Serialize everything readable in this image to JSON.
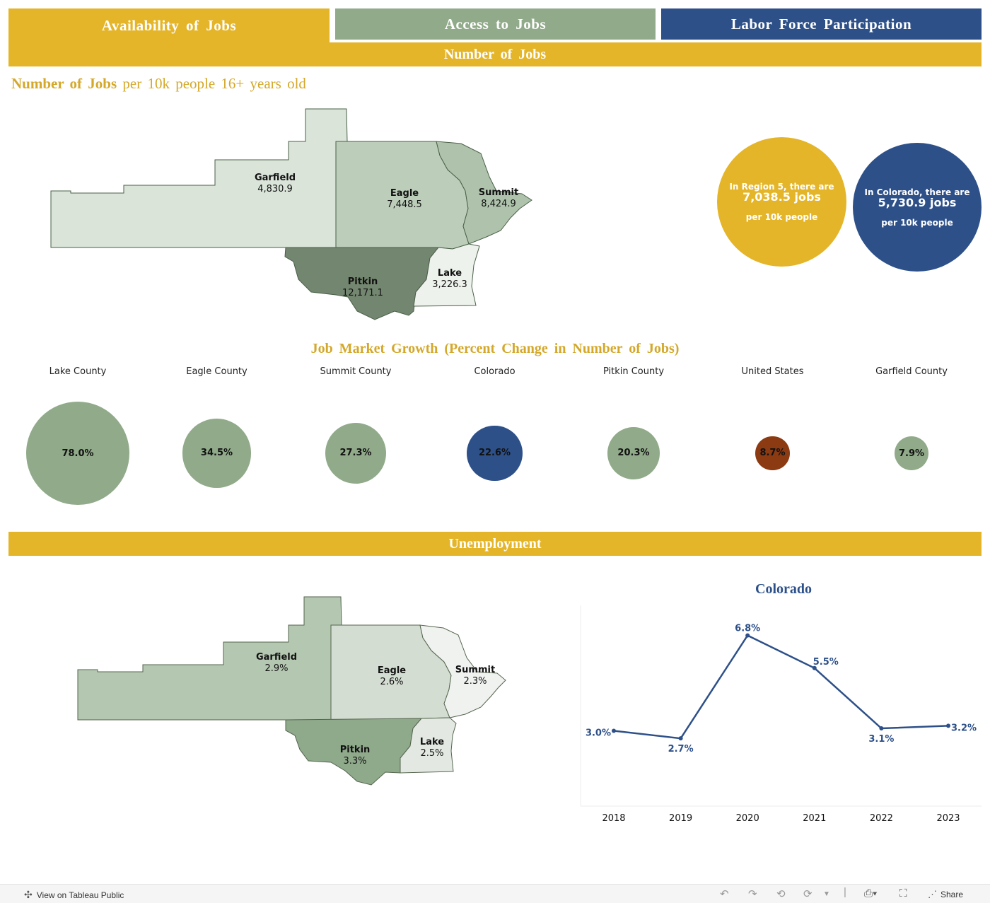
{
  "tabs": [
    {
      "label": "Availability of Jobs"
    },
    {
      "label": "Access to Jobs"
    },
    {
      "label": "Labor Force Participation"
    }
  ],
  "sections": {
    "jobs": "Number of Jobs",
    "unemployment": "Unemployment"
  },
  "subtitle": {
    "bold": "Number of Jobs",
    "rest": "per 10k people 16+ years old"
  },
  "jobs_map": {
    "counties": [
      {
        "name": "Garfield",
        "value": "4,830.9",
        "color": "#dae4d9"
      },
      {
        "name": "Eagle",
        "value": "7,448.5",
        "color": "#bccdba"
      },
      {
        "name": "Summit",
        "value": "8,424.9",
        "color": "#afc3ac"
      },
      {
        "name": "Pitkin",
        "value": "12,171.1",
        "color": "#73866f"
      },
      {
        "name": "Lake",
        "value": "3,226.3",
        "color": "#eef2ed"
      }
    ]
  },
  "bubbles": {
    "region": {
      "line1": "In Region 5, there are",
      "line2": "7,038.5 jobs",
      "line3": "per 10k people",
      "color": "#e4b529"
    },
    "colorado": {
      "line1": "In Colorado, there are",
      "line2": "5,730.9 jobs",
      "line3": "per 10k people",
      "color": "#2d5089"
    }
  },
  "growth": {
    "title": "Job Market Growth (Percent Change in Number of Jobs)",
    "items": [
      {
        "label": "Lake County",
        "value": 78.0,
        "text": "78.0%",
        "color": "#91aa8a"
      },
      {
        "label": "Eagle County",
        "value": 34.5,
        "text": "34.5%",
        "color": "#91aa8a"
      },
      {
        "label": "Summit County",
        "value": 27.3,
        "text": "27.3%",
        "color": "#91aa8a"
      },
      {
        "label": "Colorado",
        "value": 22.6,
        "text": "22.6%",
        "color": "#2d5089"
      },
      {
        "label": "Pitkin County",
        "value": 20.3,
        "text": "20.3%",
        "color": "#91aa8a"
      },
      {
        "label": "United States",
        "value": 8.7,
        "text": "8.7%",
        "color": "#8b3a12"
      },
      {
        "label": "Garfield County",
        "value": 7.9,
        "text": "7.9%",
        "color": "#91aa8a"
      }
    ]
  },
  "unemp_map": {
    "counties": [
      {
        "name": "Garfield",
        "value": "2.9%",
        "color": "#b4c7b1"
      },
      {
        "name": "Eagle",
        "value": "2.6%",
        "color": "#d3ddd1"
      },
      {
        "name": "Summit",
        "value": "2.3%",
        "color": "#f0f2f0"
      },
      {
        "name": "Pitkin",
        "value": "3.3%",
        "color": "#8fa98b"
      },
      {
        "name": "Lake",
        "value": "2.5%",
        "color": "#e3e9e2"
      }
    ]
  },
  "chart_data": {
    "type": "line",
    "title": "Colorado",
    "categories": [
      "2018",
      "2019",
      "2020",
      "2021",
      "2022",
      "2023"
    ],
    "values": [
      3.0,
      2.7,
      6.8,
      5.5,
      3.1,
      3.2
    ],
    "labels": [
      "3.0%",
      "2.7%",
      "6.8%",
      "5.5%",
      "3.1%",
      "3.2%"
    ],
    "ylim": [
      0,
      8
    ],
    "color": "#2d5089",
    "grid": false
  },
  "footer": {
    "view_label": "View on Tableau Public",
    "share_label": "Share",
    "icons": [
      "undo-icon",
      "redo-icon",
      "revert-icon",
      "refresh-icon",
      "pause-icon",
      "download-icon",
      "fullscreen-icon",
      "share-icon"
    ]
  }
}
